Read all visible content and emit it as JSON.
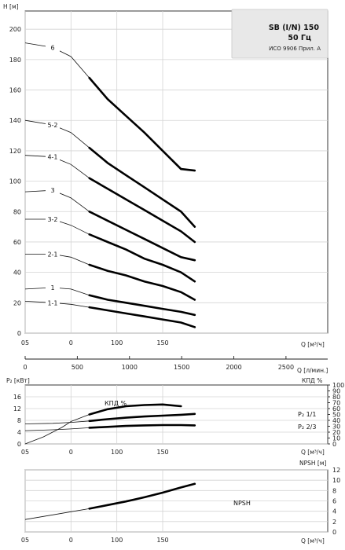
{
  "chart_data": [
    {
      "type": "line",
      "id": "head",
      "ylabel": "H [м]",
      "xlabel": "Q [м³/ч]",
      "xlim": [
        -50,
        280
      ],
      "ylim": [
        0,
        212
      ],
      "xticks": [
        {
          "v": -50,
          "label": "05"
        },
        {
          "v": 0,
          "label": "0"
        },
        {
          "v": 50,
          "label": "100"
        },
        {
          "v": 100,
          "label": "150"
        }
      ],
      "yticks": [
        0,
        20,
        40,
        60,
        80,
        100,
        120,
        140,
        160,
        180,
        200
      ],
      "series": [
        {
          "name": "6",
          "x": [
            -50,
            -20,
            0,
            20,
            40,
            60,
            80,
            100,
            120,
            135
          ],
          "y": [
            191,
            188,
            182,
            168,
            154,
            143,
            132,
            120,
            108,
            107
          ]
        },
        {
          "name": "5-2",
          "x": [
            -50,
            -20,
            0,
            20,
            40,
            60,
            80,
            100,
            120,
            135
          ],
          "y": [
            140,
            137,
            132,
            122,
            112,
            104,
            96,
            88,
            80,
            70
          ]
        },
        {
          "name": "4-1",
          "x": [
            -50,
            -20,
            0,
            20,
            40,
            60,
            80,
            100,
            120,
            135
          ],
          "y": [
            117,
            116,
            111,
            102,
            95,
            88,
            81,
            74,
            67,
            60
          ]
        },
        {
          "name": "3",
          "x": [
            -50,
            -20,
            0,
            20,
            40,
            60,
            80,
            100,
            120,
            135
          ],
          "y": [
            93,
            94,
            89,
            80,
            74,
            68,
            62,
            56,
            50,
            48
          ]
        },
        {
          "name": "3-2",
          "x": [
            -50,
            -20,
            0,
            20,
            40,
            60,
            80,
            100,
            120,
            135
          ],
          "y": [
            75,
            75,
            71,
            65,
            60,
            55,
            49,
            45,
            40,
            34
          ]
        },
        {
          "name": "2-1",
          "x": [
            -50,
            -20,
            0,
            20,
            40,
            60,
            80,
            100,
            120,
            135
          ],
          "y": [
            52,
            52,
            50,
            45,
            41,
            38,
            34,
            31,
            27,
            22
          ]
        },
        {
          "name": "1",
          "x": [
            -50,
            -20,
            0,
            20,
            40,
            60,
            80,
            100,
            120,
            135
          ],
          "y": [
            29,
            30,
            29,
            25,
            22,
            20,
            18,
            16,
            14,
            12
          ]
        },
        {
          "name": "1-1",
          "x": [
            -50,
            -20,
            0,
            20,
            40,
            60,
            80,
            100,
            120,
            135
          ],
          "y": [
            21,
            20,
            19,
            17,
            15,
            13,
            11,
            9,
            7,
            4
          ]
        }
      ],
      "curve_labels": [
        "6",
        "5-2",
        "4-1",
        "3",
        "3-2",
        "2-1",
        "1",
        "1-1"
      ]
    },
    {
      "type": "line",
      "id": "power",
      "ylabel": "P₂ [кВт]",
      "y2label": "КПД %",
      "xlabel": "Q [м³/ч]",
      "x2label": "Q [л/мин.]",
      "xlim": [
        -50,
        280
      ],
      "ylim": [
        0,
        20
      ],
      "y2lim": [
        0,
        100
      ],
      "yticks": [
        0,
        4,
        8,
        12,
        16
      ],
      "y2ticks": [
        0,
        10,
        20,
        30,
        40,
        50,
        60,
        70,
        80,
        90,
        100
      ],
      "x2ticks": [
        0,
        500,
        1000,
        1500,
        2000,
        2500
      ],
      "series": [
        {
          "name": "КПД %",
          "axis": "right",
          "x": [
            -50,
            -30,
            -10,
            0,
            20,
            40,
            60,
            80,
            100,
            120
          ],
          "y": [
            0,
            12,
            28,
            38,
            50,
            59,
            64,
            66,
            67,
            64
          ]
        },
        {
          "name": "P₂ 1/1",
          "axis": "left",
          "x": [
            -50,
            -20,
            0,
            20,
            40,
            60,
            80,
            100,
            120,
            135
          ],
          "y": [
            6.8,
            7.0,
            7.3,
            7.8,
            8.4,
            8.9,
            9.3,
            9.6,
            9.9,
            10.2
          ]
        },
        {
          "name": "P₂ 2/3",
          "axis": "left",
          "x": [
            -50,
            -20,
            0,
            20,
            40,
            60,
            80,
            100,
            120,
            135
          ],
          "y": [
            4.5,
            4.8,
            5.1,
            5.5,
            5.8,
            6.1,
            6.3,
            6.4,
            6.4,
            6.3
          ]
        }
      ],
      "labels": {
        "eff": "КПД %",
        "p11": "P₂ 1/1",
        "p23": "P₂ 2/3"
      }
    },
    {
      "type": "line",
      "id": "npsh",
      "ylabel": "NPSH [м]",
      "xlabel": "Q [м³/ч]",
      "xlim": [
        -50,
        280
      ],
      "ylim": [
        0,
        12
      ],
      "yticks": [
        0,
        2,
        4,
        6,
        8,
        10,
        12
      ],
      "series": [
        {
          "name": "NPSH",
          "x": [
            -50,
            -20,
            0,
            20,
            40,
            60,
            80,
            100,
            120,
            135
          ],
          "y": [
            2.4,
            3.3,
            3.9,
            4.5,
            5.2,
            5.9,
            6.7,
            7.6,
            8.6,
            9.3
          ]
        }
      ],
      "label": "NPSH"
    }
  ],
  "title": {
    "line1": "SB (I/N) 150",
    "line2": "50 Гц",
    "line3": "ИСО 9906 Прил. A"
  },
  "axis_text": {
    "h": "H [м]",
    "q1": "Q [м³/ч]",
    "q2": "Q [л/мин.]",
    "p2": "P₂ [кВт]",
    "eff": "КПД %",
    "q3": "Q [м³/ч]",
    "npsh": "NPSH [м]",
    "q4": "Q [м³/ч]"
  },
  "x_ticks_q": [
    "05",
    "0",
    "100",
    "150"
  ],
  "x_ticks_lmin": [
    "0",
    "500",
    "1000",
    "1500",
    "2000",
    "2500"
  ]
}
